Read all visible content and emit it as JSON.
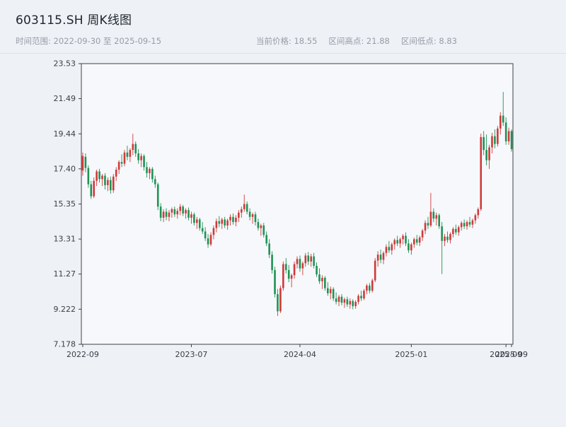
{
  "header": {
    "title": "603115.SH 周K线图",
    "time_range_label": "时间范围: 2022-09-30 至 2025-09-15",
    "current_price_label": "当前价格: 18.55",
    "range_high_label": "区间高点: 21.88",
    "range_low_label": "区间低点: 8.83"
  },
  "chart_data": {
    "type": "candlestick",
    "title": "603115.SH 周K线图",
    "symbol": "603115.SH",
    "period": "weekly",
    "start_date": "2022-09-30",
    "end_date": "2025-09-15",
    "current_price": 18.55,
    "range_high": 21.88,
    "range_low": 8.83,
    "ylim": [
      7.178,
      23.53
    ],
    "up_color": "#cf3a3a",
    "down_color": "#1f9254",
    "axis_color": "#3d4248",
    "tick_color": "#3a3f46",
    "plot_bg": "#f6f8fb",
    "grid": false,
    "legend": "none",
    "y_ticks": [
      {
        "v": 7.178,
        "label": "7.178"
      },
      {
        "v": 9.222,
        "label": "9.222"
      },
      {
        "v": 11.27,
        "label": "11.27"
      },
      {
        "v": 13.31,
        "label": "13.31"
      },
      {
        "v": 15.35,
        "label": "15.35"
      },
      {
        "v": 17.4,
        "label": "17.40"
      },
      {
        "v": 19.44,
        "label": "19.44"
      },
      {
        "v": 21.49,
        "label": "21.49"
      },
      {
        "v": 23.53,
        "label": "23.53"
      }
    ],
    "x_ticks": [
      {
        "index": 0,
        "label": "2022-09"
      },
      {
        "index": 39,
        "label": "2023-07"
      },
      {
        "index": 78,
        "label": "2024-04"
      },
      {
        "index": 118,
        "label": "2025-01"
      },
      {
        "index": 152,
        "label": "2025-09"
      },
      {
        "index": 154,
        "label": "2025-09"
      }
    ],
    "candles": [
      [
        17.3,
        18.35,
        17.0,
        18.15
      ],
      [
        18.1,
        18.3,
        17.2,
        17.45
      ],
      [
        17.45,
        17.6,
        16.3,
        16.5
      ],
      [
        16.5,
        16.7,
        15.65,
        15.8
      ],
      [
        15.8,
        16.9,
        15.7,
        16.7
      ],
      [
        16.7,
        17.35,
        16.4,
        17.25
      ],
      [
        17.25,
        17.4,
        16.6,
        16.8
      ],
      [
        16.8,
        17.1,
        16.4,
        17.0
      ],
      [
        17.0,
        17.15,
        16.2,
        16.45
      ],
      [
        16.45,
        16.9,
        16.1,
        16.75
      ],
      [
        16.75,
        16.95,
        15.95,
        16.15
      ],
      [
        16.15,
        17.1,
        16.0,
        16.95
      ],
      [
        16.95,
        17.5,
        16.7,
        17.35
      ],
      [
        17.35,
        17.9,
        17.1,
        17.8
      ],
      [
        17.8,
        18.25,
        17.5,
        17.7
      ],
      [
        17.7,
        18.5,
        17.55,
        18.35
      ],
      [
        18.35,
        18.75,
        17.9,
        18.1
      ],
      [
        18.1,
        18.6,
        17.8,
        18.5
      ],
      [
        18.5,
        19.44,
        18.2,
        18.85
      ],
      [
        18.85,
        19.0,
        18.1,
        18.3
      ],
      [
        18.3,
        18.55,
        17.7,
        17.9
      ],
      [
        17.9,
        18.3,
        17.5,
        18.15
      ],
      [
        18.15,
        18.25,
        17.3,
        17.5
      ],
      [
        17.5,
        17.8,
        16.9,
        17.15
      ],
      [
        17.15,
        17.5,
        16.8,
        17.4
      ],
      [
        17.4,
        17.5,
        16.6,
        16.8
      ],
      [
        16.8,
        17.0,
        16.3,
        16.5
      ],
      [
        16.5,
        16.6,
        15.0,
        15.2
      ],
      [
        15.2,
        15.4,
        14.35,
        14.55
      ],
      [
        14.55,
        15.05,
        14.3,
        14.9
      ],
      [
        14.9,
        15.1,
        14.4,
        14.6
      ],
      [
        14.6,
        15.0,
        14.35,
        14.85
      ],
      [
        14.85,
        15.15,
        14.55,
        15.05
      ],
      [
        15.05,
        15.2,
        14.6,
        14.75
      ],
      [
        14.75,
        15.1,
        14.5,
        14.95
      ],
      [
        14.95,
        15.35,
        14.7,
        15.2
      ],
      [
        15.2,
        15.3,
        14.65,
        14.8
      ],
      [
        14.8,
        15.1,
        14.5,
        15.0
      ],
      [
        15.0,
        15.15,
        14.4,
        14.55
      ],
      [
        14.55,
        14.9,
        14.2,
        14.75
      ],
      [
        14.75,
        14.85,
        14.1,
        14.25
      ],
      [
        14.25,
        14.6,
        13.9,
        14.45
      ],
      [
        14.45,
        14.55,
        13.8,
        13.95
      ],
      [
        13.95,
        14.3,
        13.6,
        13.75
      ],
      [
        13.75,
        14.0,
        13.2,
        13.35
      ],
      [
        13.35,
        13.6,
        12.8,
        13.0
      ],
      [
        13.0,
        13.7,
        12.9,
        13.55
      ],
      [
        13.55,
        14.1,
        13.3,
        13.95
      ],
      [
        13.95,
        14.5,
        13.7,
        14.35
      ],
      [
        14.35,
        14.65,
        14.0,
        14.2
      ],
      [
        14.2,
        14.55,
        13.9,
        14.45
      ],
      [
        14.45,
        14.6,
        13.95,
        14.1
      ],
      [
        14.1,
        14.5,
        13.85,
        14.4
      ],
      [
        14.4,
        14.75,
        14.1,
        14.6
      ],
      [
        14.6,
        14.8,
        14.15,
        14.3
      ],
      [
        14.3,
        14.7,
        14.05,
        14.55
      ],
      [
        14.55,
        15.0,
        14.3,
        14.85
      ],
      [
        14.85,
        15.2,
        14.55,
        15.05
      ],
      [
        15.05,
        15.9,
        14.9,
        15.35
      ],
      [
        15.35,
        15.5,
        14.75,
        14.9
      ],
      [
        14.9,
        15.1,
        14.4,
        14.6
      ],
      [
        14.6,
        14.85,
        14.2,
        14.75
      ],
      [
        14.75,
        14.9,
        14.1,
        14.3
      ],
      [
        14.3,
        14.5,
        13.8,
        13.95
      ],
      [
        13.95,
        14.2,
        13.5,
        14.1
      ],
      [
        14.1,
        14.25,
        13.4,
        13.55
      ],
      [
        13.55,
        13.75,
        12.9,
        13.05
      ],
      [
        13.05,
        13.3,
        12.2,
        12.4
      ],
      [
        12.4,
        12.6,
        11.3,
        11.5
      ],
      [
        11.5,
        11.7,
        9.9,
        10.1
      ],
      [
        10.1,
        10.4,
        8.83,
        9.1
      ],
      [
        9.1,
        10.6,
        9.0,
        10.45
      ],
      [
        10.45,
        12.0,
        10.3,
        11.85
      ],
      [
        11.85,
        12.2,
        11.3,
        11.5
      ],
      [
        11.5,
        11.8,
        10.8,
        11.0
      ],
      [
        11.0,
        11.3,
        10.5,
        11.2
      ],
      [
        11.2,
        12.0,
        11.0,
        11.85
      ],
      [
        11.85,
        12.3,
        11.6,
        12.15
      ],
      [
        12.15,
        12.35,
        11.4,
        11.6
      ],
      [
        11.6,
        12.0,
        11.2,
        11.9
      ],
      [
        11.9,
        12.5,
        11.7,
        12.35
      ],
      [
        12.35,
        12.55,
        11.8,
        12.0
      ],
      [
        12.0,
        12.45,
        11.7,
        12.3
      ],
      [
        12.3,
        12.5,
        11.6,
        11.75
      ],
      [
        11.75,
        11.95,
        11.1,
        11.25
      ],
      [
        11.25,
        11.6,
        10.7,
        10.85
      ],
      [
        10.85,
        11.2,
        10.4,
        11.05
      ],
      [
        11.05,
        11.15,
        10.3,
        10.45
      ],
      [
        10.45,
        10.8,
        10.0,
        10.15
      ],
      [
        10.15,
        10.55,
        9.8,
        10.4
      ],
      [
        10.4,
        10.5,
        9.7,
        9.85
      ],
      [
        9.85,
        10.2,
        9.5,
        9.65
      ],
      [
        9.65,
        10.05,
        9.4,
        9.95
      ],
      [
        9.95,
        10.1,
        9.45,
        9.6
      ],
      [
        9.6,
        9.9,
        9.3,
        9.8
      ],
      [
        9.8,
        9.95,
        9.35,
        9.5
      ],
      [
        9.5,
        9.85,
        9.25,
        9.7
      ],
      [
        9.7,
        9.8,
        9.22,
        9.4
      ],
      [
        9.4,
        9.75,
        9.25,
        9.65
      ],
      [
        9.65,
        10.1,
        9.5,
        10.0
      ],
      [
        10.0,
        10.3,
        9.7,
        9.85
      ],
      [
        9.85,
        10.4,
        9.75,
        10.3
      ],
      [
        10.3,
        10.7,
        10.1,
        10.6
      ],
      [
        10.6,
        10.75,
        10.15,
        10.3
      ],
      [
        10.3,
        11.0,
        10.2,
        10.9
      ],
      [
        10.9,
        12.2,
        10.8,
        12.05
      ],
      [
        12.05,
        12.6,
        11.7,
        12.4
      ],
      [
        12.4,
        12.7,
        11.9,
        12.1
      ],
      [
        12.1,
        12.6,
        11.85,
        12.5
      ],
      [
        12.5,
        13.0,
        12.3,
        12.85
      ],
      [
        12.85,
        13.2,
        12.5,
        12.65
      ],
      [
        12.65,
        13.1,
        12.4,
        13.0
      ],
      [
        13.0,
        13.35,
        12.7,
        13.25
      ],
      [
        13.25,
        13.5,
        12.9,
        13.05
      ],
      [
        13.05,
        13.4,
        12.8,
        13.3
      ],
      [
        13.3,
        13.6,
        13.0,
        13.5
      ],
      [
        13.5,
        13.7,
        12.9,
        13.05
      ],
      [
        13.05,
        13.3,
        12.5,
        12.65
      ],
      [
        12.65,
        13.1,
        12.4,
        13.0
      ],
      [
        13.0,
        13.4,
        12.8,
        13.3
      ],
      [
        13.3,
        13.55,
        12.95,
        13.1
      ],
      [
        13.1,
        13.5,
        12.9,
        13.4
      ],
      [
        13.4,
        13.9,
        13.2,
        13.8
      ],
      [
        13.8,
        14.4,
        13.6,
        14.25
      ],
      [
        14.25,
        14.6,
        13.9,
        14.1
      ],
      [
        14.1,
        16.0,
        14.0,
        14.9
      ],
      [
        14.9,
        15.1,
        14.3,
        14.5
      ],
      [
        14.5,
        14.85,
        14.1,
        14.7
      ],
      [
        14.7,
        14.8,
        13.9,
        14.05
      ],
      [
        14.05,
        14.3,
        11.27,
        13.2
      ],
      [
        13.2,
        13.6,
        12.9,
        13.45
      ],
      [
        13.45,
        13.75,
        13.1,
        13.25
      ],
      [
        13.25,
        13.7,
        13.05,
        13.6
      ],
      [
        13.6,
        14.0,
        13.4,
        13.9
      ],
      [
        13.9,
        14.15,
        13.55,
        13.7
      ],
      [
        13.7,
        14.1,
        13.5,
        14.0
      ],
      [
        14.0,
        14.35,
        13.8,
        14.25
      ],
      [
        14.25,
        14.45,
        13.9,
        14.05
      ],
      [
        14.05,
        14.4,
        13.85,
        14.3
      ],
      [
        14.3,
        14.6,
        14.0,
        14.15
      ],
      [
        14.15,
        14.5,
        13.95,
        14.4
      ],
      [
        14.4,
        14.8,
        14.2,
        14.7
      ],
      [
        14.7,
        15.15,
        14.5,
        15.05
      ],
      [
        15.05,
        19.45,
        14.95,
        19.25
      ],
      [
        19.25,
        19.6,
        18.2,
        18.5
      ],
      [
        18.5,
        19.4,
        17.6,
        17.9
      ],
      [
        17.9,
        18.8,
        17.4,
        18.65
      ],
      [
        18.65,
        19.5,
        18.3,
        19.3
      ],
      [
        19.3,
        19.7,
        18.6,
        18.85
      ],
      [
        18.85,
        19.9,
        18.7,
        19.75
      ],
      [
        19.75,
        20.7,
        19.4,
        20.5
      ],
      [
        20.5,
        21.88,
        19.9,
        20.1
      ],
      [
        20.1,
        20.4,
        18.8,
        19.0
      ],
      [
        19.0,
        19.8,
        18.8,
        19.6
      ],
      [
        19.6,
        19.7,
        18.4,
        18.55
      ]
    ]
  }
}
